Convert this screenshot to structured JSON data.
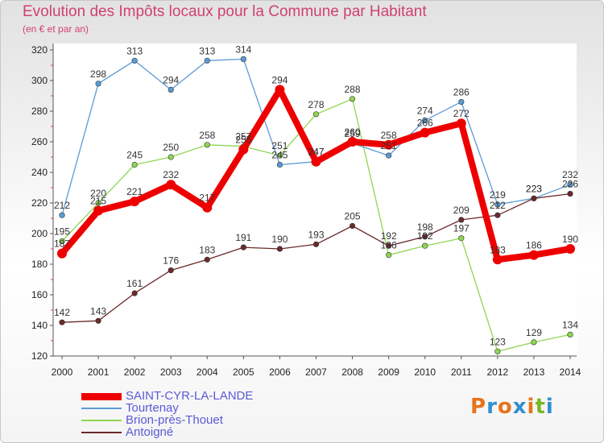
{
  "title": "Evolution des Impôts locaux pour la Commune par Habitant",
  "subtitle": "(en € et par an)",
  "logo": {
    "text": "Proxiti",
    "colors": [
      "#e8731b",
      "#2f8fd0",
      "#e8731b",
      "#2f8fd0",
      "#e8731b",
      "#7ab825",
      "#2f8fd0"
    ]
  },
  "chart_data": {
    "type": "line",
    "x": [
      "2000",
      "2001",
      "2002",
      "2003",
      "2004",
      "2005",
      "2006",
      "2007",
      "2008",
      "2009",
      "2010",
      "2011",
      "2012",
      "2013",
      "2014"
    ],
    "ylim": [
      120,
      320
    ],
    "yticks": [
      120,
      140,
      160,
      180,
      200,
      220,
      240,
      260,
      280,
      300,
      320
    ],
    "grid": false,
    "legend": "bottom-left",
    "series": [
      {
        "name": "SAINT-CYR-LA-LANDE",
        "color": "#ee0000",
        "values": [
          187,
          215,
          221,
          232,
          217,
          255,
          294,
          247,
          260,
          258,
          266,
          272,
          183,
          186,
          190
        ]
      },
      {
        "name": "Tourtenay",
        "color": "#5b9bd5",
        "values": [
          212,
          298,
          313,
          294,
          313,
          314,
          245,
          247,
          259,
          251,
          274,
          286,
          219,
          223,
          232
        ]
      },
      {
        "name": "Brion-près-Thouet",
        "color": "#8fd653",
        "values": [
          195,
          220,
          245,
          250,
          258,
          257,
          251,
          278,
          288,
          186,
          192,
          197,
          123,
          129,
          134
        ]
      },
      {
        "name": "Antoigné",
        "color": "#6b2a2a",
        "values": [
          142,
          143,
          161,
          176,
          183,
          191,
          190,
          193,
          205,
          192,
          198,
          209,
          212,
          223,
          226
        ]
      }
    ]
  }
}
